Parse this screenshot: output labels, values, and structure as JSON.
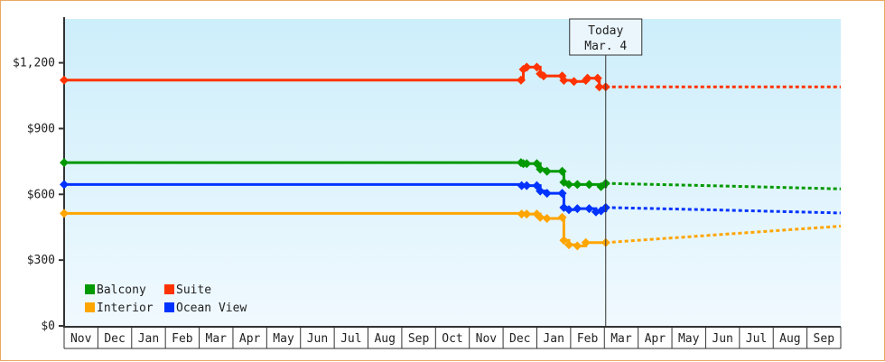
{
  "chart_data": {
    "type": "line",
    "title": "",
    "ylabel": "",
    "xlabel": "",
    "ylim": [
      0,
      1400
    ],
    "yticks": [
      {
        "v": 0,
        "label": "$0"
      },
      {
        "v": 300,
        "label": "$300"
      },
      {
        "v": 600,
        "label": "$600"
      },
      {
        "v": 900,
        "label": "$900"
      },
      {
        "v": 1200,
        "label": "$1,200"
      }
    ],
    "months": [
      "Nov",
      "Dec",
      "Jan",
      "Feb",
      "Mar",
      "Apr",
      "May",
      "Jun",
      "Jul",
      "Aug",
      "Sep",
      "Oct",
      "Nov",
      "Dec",
      "Jan",
      "Feb",
      "Mar",
      "Apr",
      "May",
      "Jun",
      "Jul",
      "Aug",
      "Sep"
    ],
    "today": {
      "x": 16.04,
      "line1": "Today",
      "line2": "Mar. 4"
    },
    "legend_placement": "bottom-left",
    "series": [
      {
        "name": "Balcony",
        "color": "#009900",
        "points": [
          [
            0,
            745
          ],
          [
            13.53,
            745
          ],
          [
            13.6,
            740
          ],
          [
            13.7,
            740
          ],
          [
            14.0,
            740
          ],
          [
            14.1,
            715
          ],
          [
            14.3,
            705
          ],
          [
            14.75,
            705
          ],
          [
            14.8,
            655
          ],
          [
            14.95,
            645
          ],
          [
            15.2,
            645
          ],
          [
            15.55,
            645
          ],
          [
            15.9,
            635
          ],
          [
            16.04,
            650
          ]
        ],
        "projection": [
          [
            16.04,
            650
          ],
          [
            19,
            640
          ],
          [
            23,
            625
          ]
        ]
      },
      {
        "name": "Suite",
        "color": "#ff3300",
        "points": [
          [
            0,
            1121
          ],
          [
            13.53,
            1121
          ],
          [
            13.6,
            1170
          ],
          [
            13.7,
            1180
          ],
          [
            14.0,
            1180
          ],
          [
            14.1,
            1150
          ],
          [
            14.2,
            1140
          ],
          [
            14.75,
            1140
          ],
          [
            14.8,
            1120
          ],
          [
            15.1,
            1115
          ],
          [
            15.45,
            1120
          ],
          [
            15.5,
            1130
          ],
          [
            15.8,
            1130
          ],
          [
            15.85,
            1090
          ],
          [
            16.04,
            1090
          ]
        ],
        "projection": [
          [
            16.04,
            1090
          ],
          [
            23,
            1090
          ]
        ]
      },
      {
        "name": "Interior",
        "color": "#ffa500",
        "points": [
          [
            0,
            513
          ],
          [
            13.55,
            510
          ],
          [
            13.7,
            510
          ],
          [
            14.0,
            510
          ],
          [
            14.1,
            495
          ],
          [
            14.3,
            490
          ],
          [
            14.75,
            495
          ],
          [
            14.8,
            390
          ],
          [
            14.95,
            370
          ],
          [
            15.2,
            365
          ],
          [
            15.45,
            380
          ],
          [
            16.04,
            380
          ]
        ],
        "projection": [
          [
            16.04,
            380
          ],
          [
            23,
            455
          ]
        ]
      },
      {
        "name": "Ocean View",
        "color": "#0033ff",
        "points": [
          [
            0,
            645
          ],
          [
            13.55,
            640
          ],
          [
            13.7,
            640
          ],
          [
            14.0,
            640
          ],
          [
            14.1,
            615
          ],
          [
            14.3,
            605
          ],
          [
            14.75,
            605
          ],
          [
            14.8,
            540
          ],
          [
            14.95,
            530
          ],
          [
            15.2,
            535
          ],
          [
            15.55,
            535
          ],
          [
            15.75,
            520
          ],
          [
            15.9,
            525
          ],
          [
            16.04,
            540
          ]
        ],
        "projection": [
          [
            16.04,
            540
          ],
          [
            19,
            530
          ],
          [
            23,
            515
          ]
        ]
      }
    ]
  }
}
